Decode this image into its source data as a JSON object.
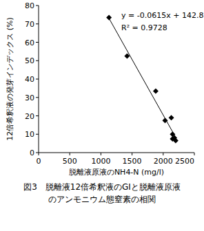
{
  "chart_data": {
    "type": "scatter",
    "title": [
      "図3　脱離液12倍希釈液のGIと脱離液原液",
      "のアンモニウム態窒素の相関"
    ],
    "x_label": "脱離液原液のNH4-N (mg/l)",
    "y_label": "12倍希釈液の発芽インデックス (%)",
    "annotations": [
      "y = -0.0615x + 142.83",
      "R² = 0.9728"
    ],
    "x": [
      1130,
      1420,
      1880,
      2030,
      2130,
      2150,
      2150,
      2180,
      2200
    ],
    "values": [
      73.5,
      52.5,
      33.5,
      17.5,
      19,
      10,
      7.5,
      8,
      6.5
    ],
    "color": "#000000",
    "marker": "diamond",
    "xlim": [
      0,
      2500
    ],
    "xticks": [
      0,
      500,
      1000,
      1500,
      2000,
      2500
    ],
    "ylim": [
      0,
      80
    ],
    "yticks": [
      0,
      10,
      20,
      30,
      40,
      50,
      60,
      70,
      80
    ],
    "grid": false
  }
}
